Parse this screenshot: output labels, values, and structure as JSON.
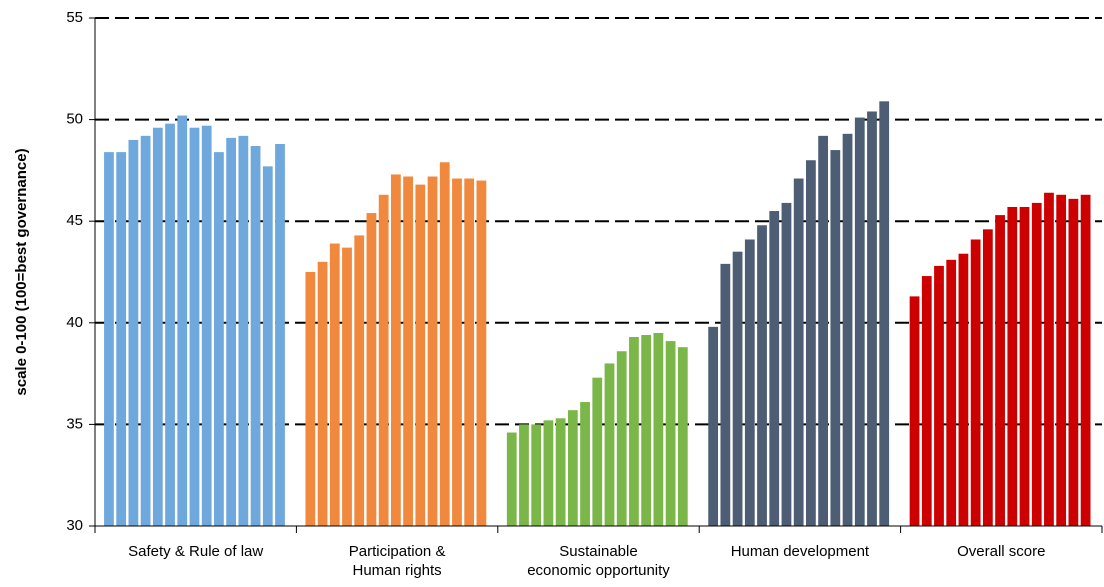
{
  "chart_data": {
    "type": "bar",
    "y_label": "scale 0-100 (100=best governance)",
    "ylim": [
      30,
      55
    ],
    "yticks": [
      30,
      35,
      40,
      45,
      50,
      55
    ],
    "grid": true,
    "groups": [
      {
        "label": [
          "Safety & Rule of law"
        ],
        "color": "#6fa8dc",
        "values": [
          48.4,
          48.4,
          49.0,
          49.2,
          49.6,
          49.8,
          50.2,
          49.6,
          49.7,
          48.4,
          49.1,
          49.2,
          48.7,
          47.7,
          48.8
        ]
      },
      {
        "label": [
          "Participation &",
          "Human rights"
        ],
        "color": "#f0883e",
        "values": [
          42.5,
          43.0,
          43.9,
          43.7,
          44.3,
          45.4,
          46.3,
          47.3,
          47.2,
          46.8,
          47.2,
          47.9,
          47.1,
          47.1,
          47.0
        ]
      },
      {
        "label": [
          "Sustainable",
          "economic opportunity"
        ],
        "color": "#7ab648",
        "values": [
          34.6,
          35.0,
          35.0,
          35.2,
          35.3,
          35.7,
          36.1,
          37.3,
          38.0,
          38.6,
          39.3,
          39.4,
          39.5,
          39.1,
          38.8
        ]
      },
      {
        "label": [
          "Human development"
        ],
        "color": "#4d5d73",
        "values": [
          39.8,
          42.9,
          43.5,
          44.1,
          44.8,
          45.5,
          45.9,
          47.1,
          48.0,
          49.2,
          48.5,
          49.3,
          50.1,
          50.4,
          50.9
        ]
      },
      {
        "label": [
          "Overall score"
        ],
        "color": "#cc0000",
        "values": [
          41.3,
          42.3,
          42.8,
          43.1,
          43.4,
          44.1,
          44.6,
          45.3,
          45.7,
          45.7,
          45.9,
          46.4,
          46.3,
          46.1,
          46.3
        ]
      }
    ]
  }
}
